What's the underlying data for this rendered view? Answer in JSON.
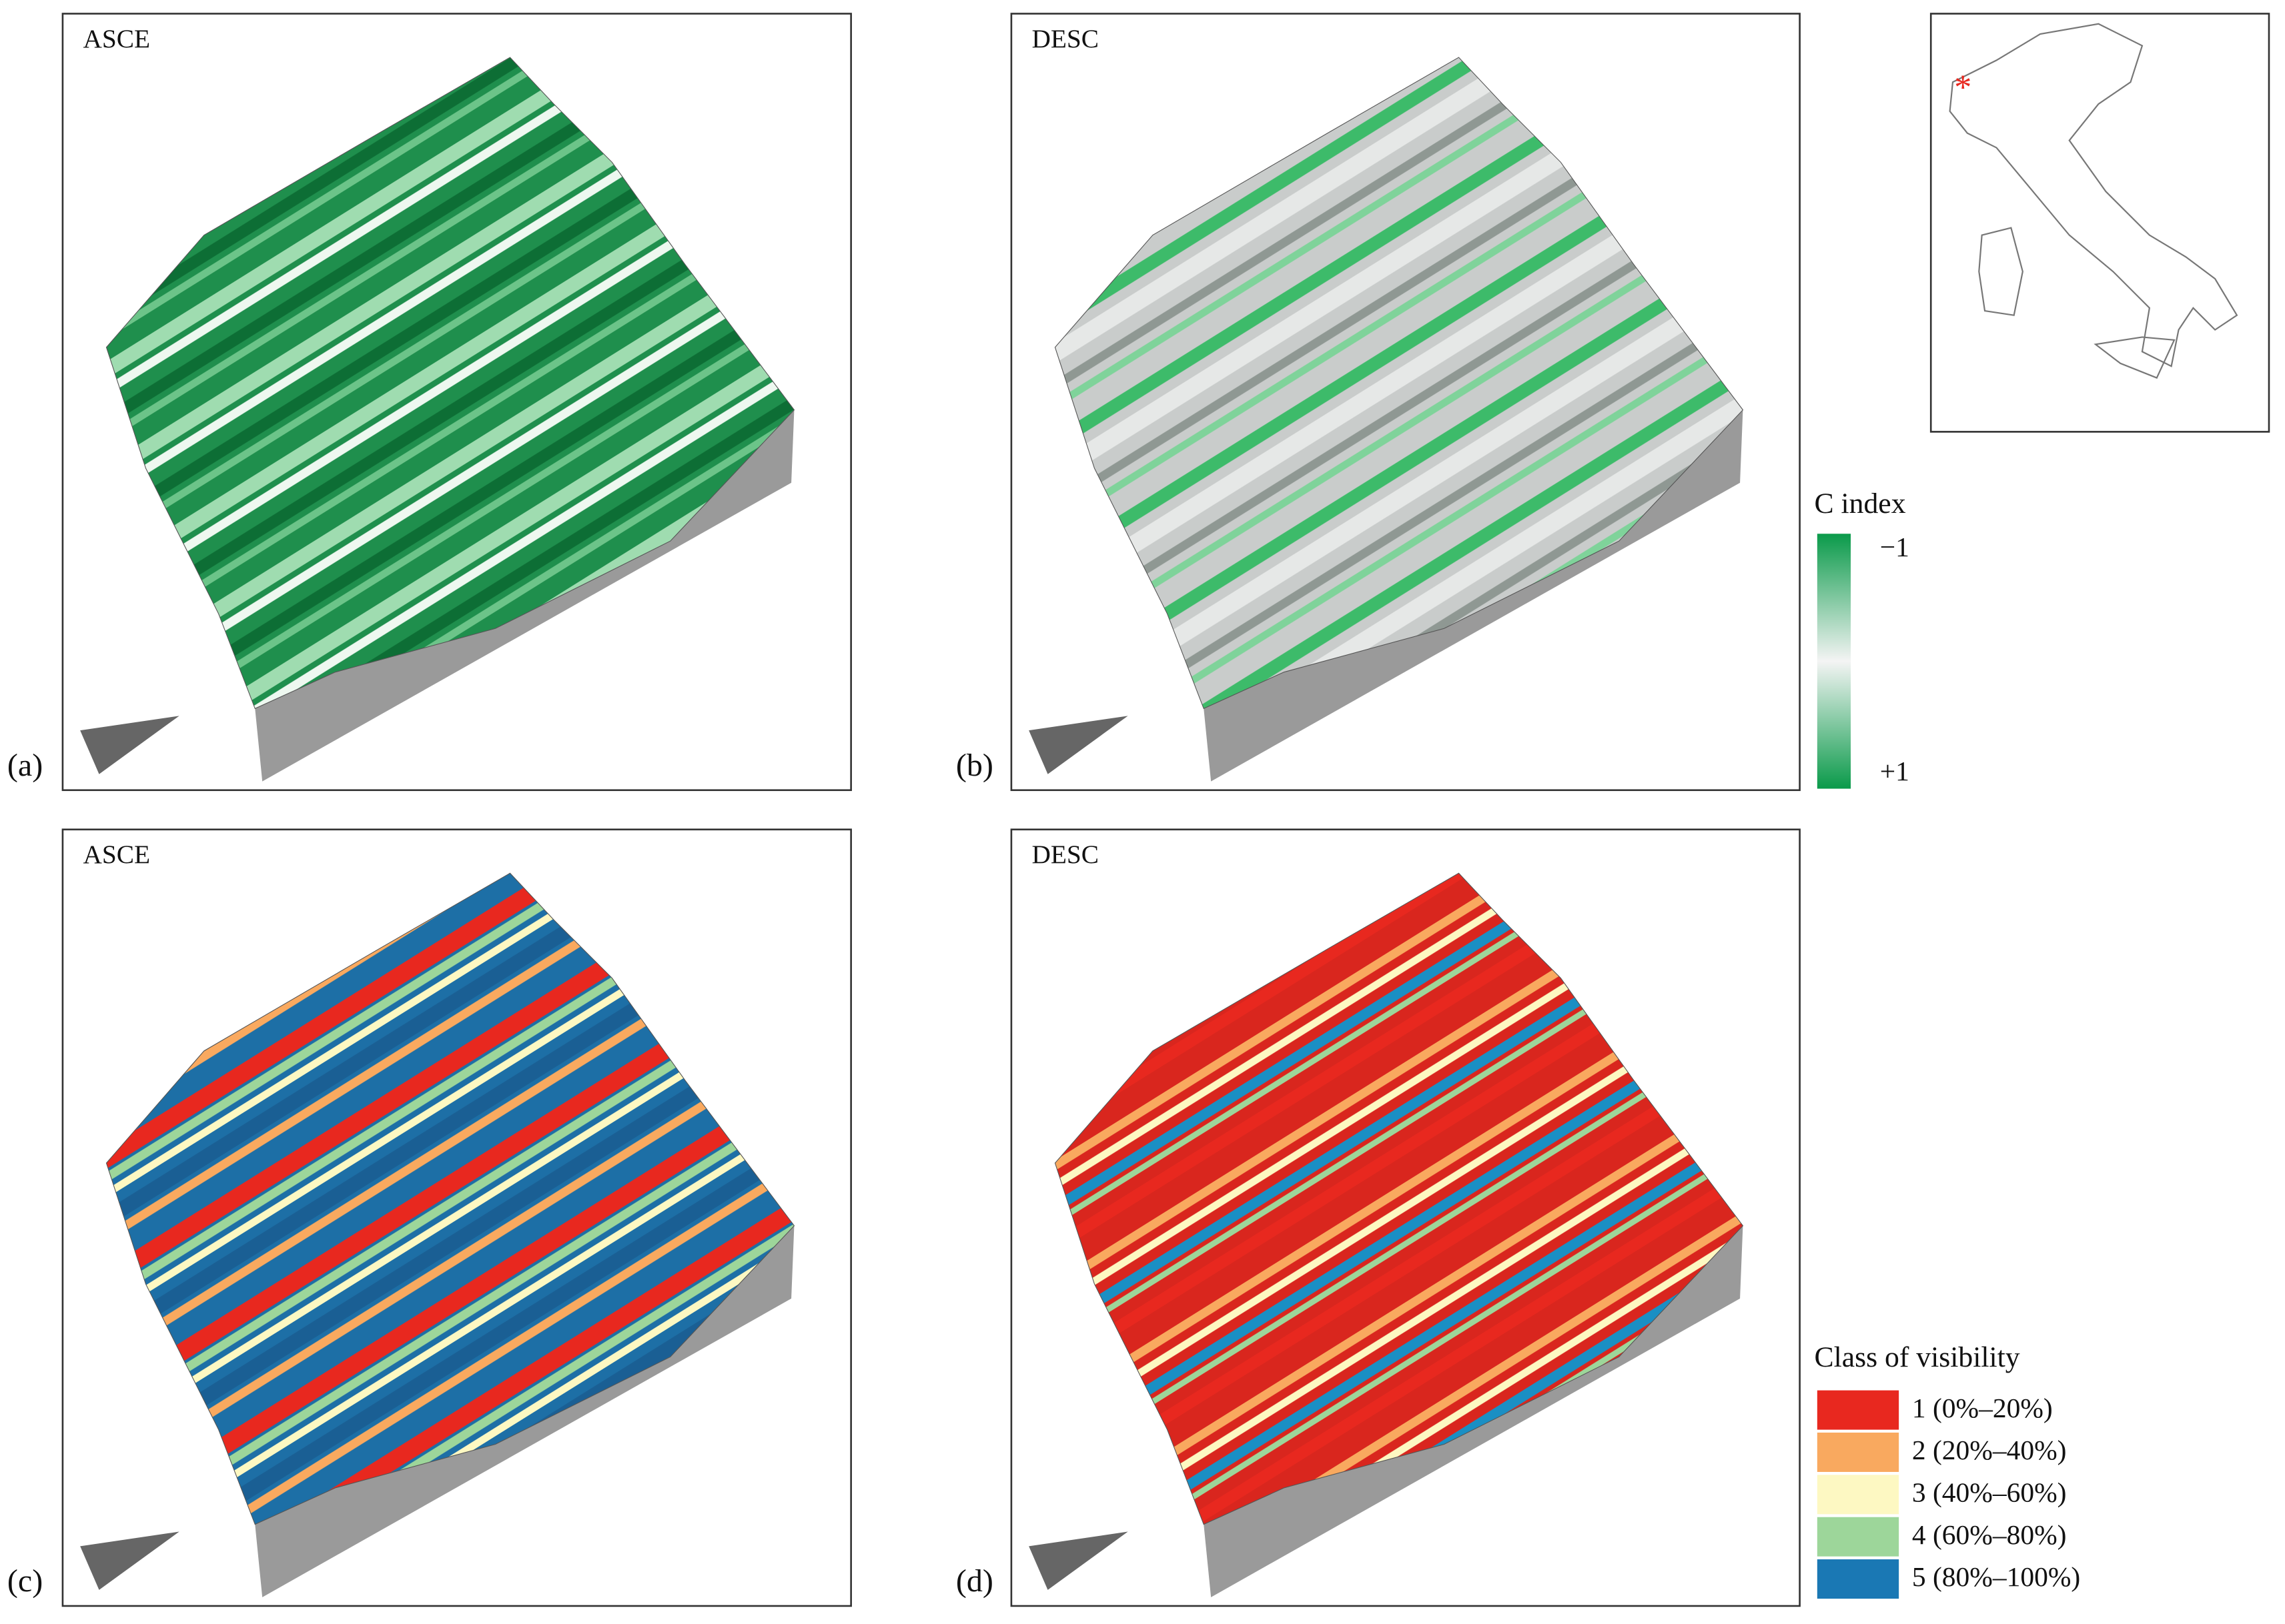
{
  "panels": [
    {
      "label": "(a)",
      "title": "ASCE"
    },
    {
      "label": "(b)",
      "title": "DESC"
    },
    {
      "label": "(c)",
      "title": "ASCE"
    },
    {
      "label": "(d)",
      "title": "DESC"
    }
  ],
  "c_index_legend": {
    "title": "C index",
    "min_label": "−1",
    "max_label": "+1",
    "color_end": "#0a9a4a",
    "color_mid": "#f4f4f4"
  },
  "visibility_legend": {
    "title": "Class of visibility",
    "classes": [
      {
        "label": "1 (0%–20%)",
        "color": "#e8281f"
      },
      {
        "label": "2 (20%–40%)",
        "color": "#f9a95f"
      },
      {
        "label": "3 (40%–60%)",
        "color": "#fdf8c2"
      },
      {
        "label": "4 (60%–80%)",
        "color": "#9dd69a"
      },
      {
        "label": "5 (80%–100%)",
        "color": "#1a78b4"
      }
    ]
  }
}
